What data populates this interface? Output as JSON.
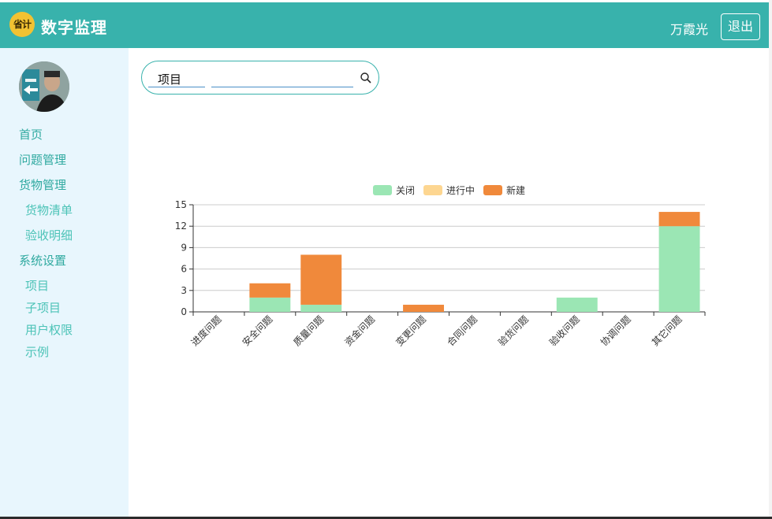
{
  "header": {
    "logo_text": "省计",
    "app_title": "数字监理",
    "user_name": "万霞光",
    "logout_label": "退出",
    "bg_color": "#38b2ac"
  },
  "sidebar": {
    "avatar_icon": "user-photo",
    "items": [
      {
        "label": "首页",
        "level": 1
      },
      {
        "label": "问题管理",
        "level": 1
      },
      {
        "label": "货物管理",
        "level": 1
      },
      {
        "label": "货物清单",
        "level": 2
      },
      {
        "label": "验收明细",
        "level": 2
      },
      {
        "label": "系统设置",
        "level": 1
      },
      {
        "label": "项目",
        "level": 2
      },
      {
        "label": "子项目",
        "level": 2
      },
      {
        "label": "用户权限",
        "level": 2
      },
      {
        "label": "示例",
        "level": 2
      }
    ]
  },
  "search": {
    "scope": "项目",
    "value": "",
    "placeholder": "",
    "icon": "search-icon"
  },
  "chart_data": {
    "type": "bar",
    "stacked": true,
    "categories": [
      "进度问题",
      "安全问题",
      "质量问题",
      "资金问题",
      "变更问题",
      "合同问题",
      "验货问题",
      "验收问题",
      "协调问题",
      "其它问题"
    ],
    "series": [
      {
        "name": "关闭",
        "color": "#9be6b4",
        "values": [
          0,
          2,
          1,
          0,
          0,
          0,
          0,
          2,
          0,
          12
        ]
      },
      {
        "name": "进行中",
        "color": "#fdd691",
        "values": [
          0,
          0,
          0,
          0,
          0,
          0,
          0,
          0,
          0,
          0
        ]
      },
      {
        "name": "新建",
        "color": "#f0893b",
        "values": [
          0,
          2,
          7,
          0,
          1,
          0,
          0,
          0,
          0,
          2
        ]
      }
    ],
    "yticks": [
      0,
      3,
      6,
      9,
      12,
      15
    ],
    "ylim": [
      0,
      15
    ],
    "grid": true,
    "legend": "top-center",
    "xlabel": "",
    "ylabel": ""
  }
}
